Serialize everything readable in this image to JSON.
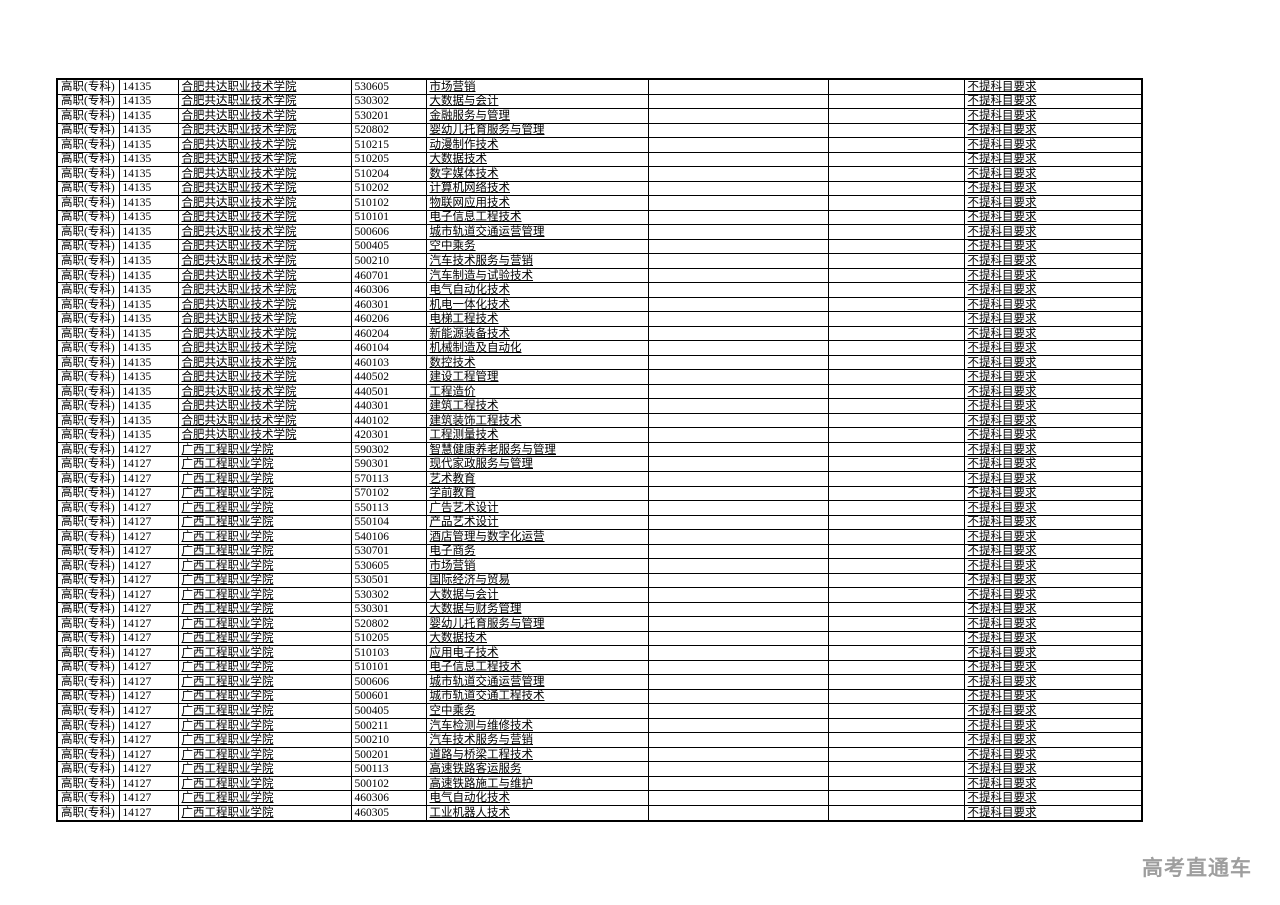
{
  "watermark": {
    "text": "高考直通车",
    "color": "#9e9e9e"
  },
  "table": {
    "level_label": "高职(专科)",
    "subject_requirement_label": "不提科目要求",
    "columns": [
      "level",
      "school_code",
      "school_name",
      "major_code",
      "major_name",
      "empty_1",
      "empty_2",
      "subject_requirement"
    ],
    "sections": [
      {
        "school_code": "14135",
        "school_name": "合肥共达职业技术学院",
        "majors": [
          [
            "530605",
            "市场营销"
          ],
          [
            "530302",
            "大数据与会计"
          ],
          [
            "530201",
            "金融服务与管理"
          ],
          [
            "520802",
            "婴幼儿托育服务与管理"
          ],
          [
            "510215",
            "动漫制作技术"
          ],
          [
            "510205",
            "大数据技术"
          ],
          [
            "510204",
            "数字媒体技术"
          ],
          [
            "510202",
            "计算机网络技术"
          ],
          [
            "510102",
            "物联网应用技术"
          ],
          [
            "510101",
            "电子信息工程技术"
          ],
          [
            "500606",
            "城市轨道交通运营管理"
          ],
          [
            "500405",
            "空中乘务"
          ],
          [
            "500210",
            "汽车技术服务与营销"
          ],
          [
            "460701",
            "汽车制造与试验技术"
          ],
          [
            "460306",
            "电气自动化技术"
          ],
          [
            "460301",
            "机电一体化技术"
          ],
          [
            "460206",
            "电梯工程技术"
          ],
          [
            "460204",
            "新能源装备技术"
          ],
          [
            "460104",
            "机械制造及自动化"
          ],
          [
            "460103",
            "数控技术"
          ],
          [
            "440502",
            "建设工程管理"
          ],
          [
            "440501",
            "工程造价"
          ],
          [
            "440301",
            "建筑工程技术"
          ],
          [
            "440102",
            "建筑装饰工程技术"
          ],
          [
            "420301",
            "工程测量技术"
          ]
        ]
      },
      {
        "school_code": "14127",
        "school_name": "广西工程职业学院",
        "majors": [
          [
            "590302",
            "智慧健康养老服务与管理"
          ],
          [
            "590301",
            "现代家政服务与管理"
          ],
          [
            "570113",
            "艺术教育"
          ],
          [
            "570102",
            "学前教育"
          ],
          [
            "550113",
            "广告艺术设计"
          ],
          [
            "550104",
            "产品艺术设计"
          ],
          [
            "540106",
            "酒店管理与数字化运营"
          ],
          [
            "530701",
            "电子商务"
          ],
          [
            "530605",
            "市场营销"
          ],
          [
            "530501",
            "国际经济与贸易"
          ],
          [
            "530302",
            "大数据与会计"
          ],
          [
            "530301",
            "大数据与财务管理"
          ],
          [
            "520802",
            "婴幼儿托育服务与管理"
          ],
          [
            "510205",
            "大数据技术"
          ],
          [
            "510103",
            "应用电子技术"
          ],
          [
            "510101",
            "电子信息工程技术"
          ],
          [
            "500606",
            "城市轨道交通运营管理"
          ],
          [
            "500601",
            "城市轨道交通工程技术"
          ],
          [
            "500405",
            "空中乘务"
          ],
          [
            "500211",
            "汽车检测与维修技术"
          ],
          [
            "500210",
            "汽车技术服务与营销"
          ],
          [
            "500201",
            "道路与桥梁工程技术"
          ],
          [
            "500113",
            "高速铁路客运服务"
          ],
          [
            "500102",
            "高速铁路施工与维护"
          ],
          [
            "460306",
            "电气自动化技术"
          ],
          [
            "460305",
            "工业机器人技术"
          ]
        ]
      }
    ]
  }
}
